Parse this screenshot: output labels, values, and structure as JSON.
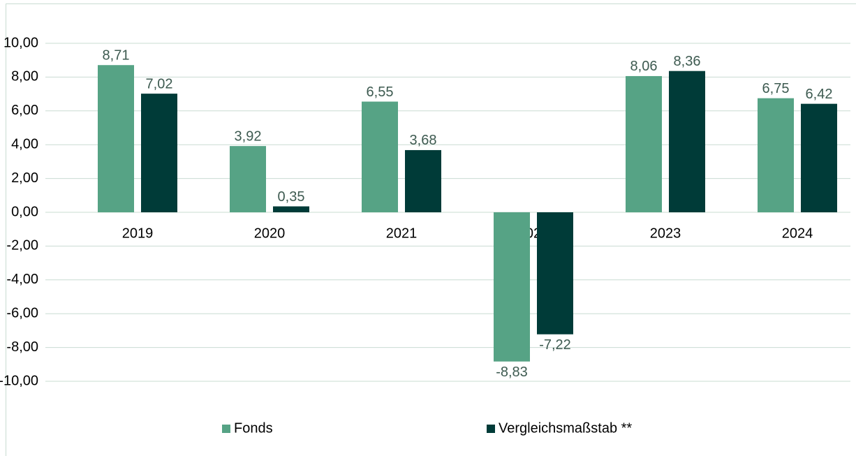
{
  "chart_data": {
    "type": "bar",
    "categories": [
      "2019",
      "2020",
      "2021",
      "2022",
      "2023",
      "2024"
    ],
    "series": [
      {
        "name": "Fonds",
        "color": "#56a385",
        "values": [
          8.71,
          3.92,
          6.55,
          -8.83,
          8.06,
          6.75
        ],
        "value_labels": [
          "8,71",
          "3,92",
          "6,55",
          "-8,83",
          "8,06",
          "6,75"
        ]
      },
      {
        "name": "Vergleichsmaßstab **",
        "color": "#003b38",
        "values": [
          7.02,
          0.35,
          3.68,
          -7.22,
          8.36,
          6.42
        ],
        "value_labels": [
          "7,02",
          "0,35",
          "3,68",
          "-7,22",
          "8,36",
          "6,42"
        ]
      }
    ],
    "ylim": [
      -10,
      10
    ],
    "yticks": [
      {
        "value": -10,
        "label": "-10,00"
      },
      {
        "value": -8,
        "label": "-8,00"
      },
      {
        "value": -6,
        "label": "-6,00"
      },
      {
        "value": -4,
        "label": "-4,00"
      },
      {
        "value": -2,
        "label": "-2,00"
      },
      {
        "value": 0,
        "label": "0,00"
      },
      {
        "value": 2,
        "label": "2,00"
      },
      {
        "value": 4,
        "label": "4,00"
      },
      {
        "value": 6,
        "label": "6,00"
      },
      {
        "value": 8,
        "label": "8,00"
      },
      {
        "value": 10,
        "label": "10,00"
      }
    ],
    "grid": true,
    "legend": "bottom"
  }
}
